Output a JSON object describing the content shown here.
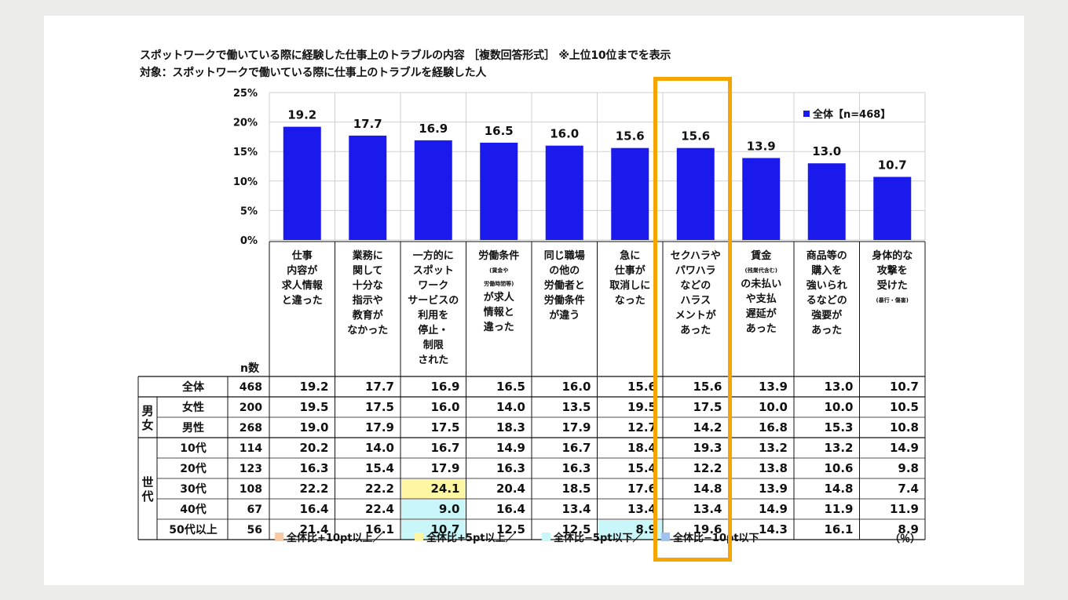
{
  "title_line1": "スポットワークで働いている際に経験した仕事上のトラブルの内容 ［複数回答形式］ ※上位10位までを表示",
  "title_line2": "対象：スポットワークで働いている際に仕事上のトラブルを経験した人",
  "colors": {
    "bar": "#1a1aec",
    "plus10": "#f7c9a4",
    "plus5": "#fff6a3",
    "minus5": "#c9f6f8",
    "minus10": "#9fc2ee",
    "highlight": "#f5a400"
  },
  "legend_bottom": [
    {
      "label": "全体比+10pt以上／",
      "color_key": "plus10"
    },
    {
      "label": "全体比+5pt以上／",
      "color_key": "plus5"
    },
    {
      "label": "全体比−5pt以下／",
      "color_key": "minus5"
    },
    {
      "label": "全体比−10pt以下",
      "color_key": "minus10"
    }
  ],
  "unit": "（％）",
  "n_header": "n数",
  "chart_data": {
    "type": "bar",
    "legend": "全体【n=468】",
    "ylim": [
      0,
      25
    ],
    "yticks": [
      "0%",
      "5%",
      "10%",
      "15%",
      "20%",
      "25%"
    ],
    "categories": [
      {
        "lines": [
          "仕事",
          "内容が",
          "求人情報",
          "と違った"
        ]
      },
      {
        "lines": [
          "業務に",
          "関して",
          "十分な",
          "指示や",
          "教育が",
          "なかった"
        ]
      },
      {
        "lines": [
          "一方的に",
          "スポット",
          "ワーク",
          "サービスの",
          "利用を",
          "停止・",
          "制限",
          "された"
        ]
      },
      {
        "lines": [
          "労働条件",
          "(賃金や",
          "労働時間等)",
          "が求人",
          "情報と",
          "違った"
        ],
        "small": [
          1,
          2
        ]
      },
      {
        "lines": [
          "同じ職場",
          "の他の",
          "労働者と",
          "労働条件",
          "が違う"
        ]
      },
      {
        "lines": [
          "急に",
          "仕事が",
          "取消しに",
          "なった"
        ]
      },
      {
        "lines": [
          "セクハラや",
          "パワハラ",
          "などの",
          "ハラス",
          "メントが",
          "あった"
        ]
      },
      {
        "lines": [
          "賃金",
          "(残業代含む)",
          "の未払い",
          "や支払",
          "遅延が",
          "あった"
        ],
        "small": [
          1
        ]
      },
      {
        "lines": [
          "商品等の",
          "購入を",
          "強いられ",
          "るなどの",
          "強要が",
          "あった"
        ]
      },
      {
        "lines": [
          "身体的な",
          "攻撃を",
          "受けた",
          "(暴行・傷害)"
        ],
        "small": [
          3
        ]
      }
    ],
    "values": [
      19.2,
      17.7,
      16.9,
      16.5,
      16.0,
      15.6,
      15.6,
      13.9,
      13.0,
      10.7
    ],
    "value_labels": [
      "19.2",
      "17.7",
      "16.9",
      "16.5",
      "16.0",
      "15.6",
      "15.6",
      "13.9",
      "13.0",
      "10.7"
    ],
    "table": {
      "groups": [
        {
          "label": "",
          "rows": [
            0
          ]
        },
        {
          "label": "男女",
          "rows": [
            1,
            2
          ]
        },
        {
          "label": "世代",
          "rows": [
            3,
            4,
            5,
            6,
            7
          ]
        }
      ],
      "rows": [
        {
          "label": "全体",
          "n": "468",
          "cells": [
            "19.2",
            "17.7",
            "16.9",
            "16.5",
            "16.0",
            "15.6",
            "15.6",
            "13.9",
            "13.0",
            "10.7"
          ]
        },
        {
          "label": "女性",
          "n": "200",
          "cells": [
            "19.5",
            "17.5",
            "16.0",
            "14.0",
            "13.5",
            "19.5",
            "17.5",
            "10.0",
            "10.0",
            "10.5"
          ]
        },
        {
          "label": "男性",
          "n": "268",
          "cells": [
            "19.0",
            "17.9",
            "17.5",
            "18.3",
            "17.9",
            "12.7",
            "14.2",
            "16.8",
            "15.3",
            "10.8"
          ]
        },
        {
          "label": "10代",
          "n": "114",
          "cells": [
            "20.2",
            "14.0",
            "16.7",
            "14.9",
            "16.7",
            "18.4",
            "19.3",
            "13.2",
            "13.2",
            "14.9"
          ]
        },
        {
          "label": "20代",
          "n": "123",
          "cells": [
            "16.3",
            "15.4",
            "17.9",
            "16.3",
            "16.3",
            "15.4",
            "12.2",
            "13.8",
            "10.6",
            "9.8"
          ]
        },
        {
          "label": "30代",
          "n": "108",
          "cells": [
            "22.2",
            "22.2",
            "24.1",
            "20.4",
            "18.5",
            "17.6",
            "14.8",
            "13.9",
            "14.8",
            "7.4"
          ]
        },
        {
          "label": "40代",
          "n": "67",
          "cells": [
            "16.4",
            "22.4",
            "9.0",
            "16.4",
            "13.4",
            "13.4",
            "13.4",
            "14.9",
            "11.9",
            "11.9"
          ]
        },
        {
          "label": "50代以上",
          "n": "56",
          "cells": [
            "21.4",
            "16.1",
            "10.7",
            "12.5",
            "12.5",
            "8.9",
            "19.6",
            "14.3",
            "16.1",
            "8.9"
          ]
        }
      ],
      "cell_highlights": [
        {
          "row": 5,
          "col": 2,
          "color_key": "plus5"
        },
        {
          "row": 6,
          "col": 2,
          "color_key": "minus5"
        },
        {
          "row": 7,
          "col": 2,
          "color_key": "minus5"
        },
        {
          "row": 7,
          "col": 5,
          "color_key": "minus5"
        }
      ]
    },
    "highlight_column": 6
  }
}
